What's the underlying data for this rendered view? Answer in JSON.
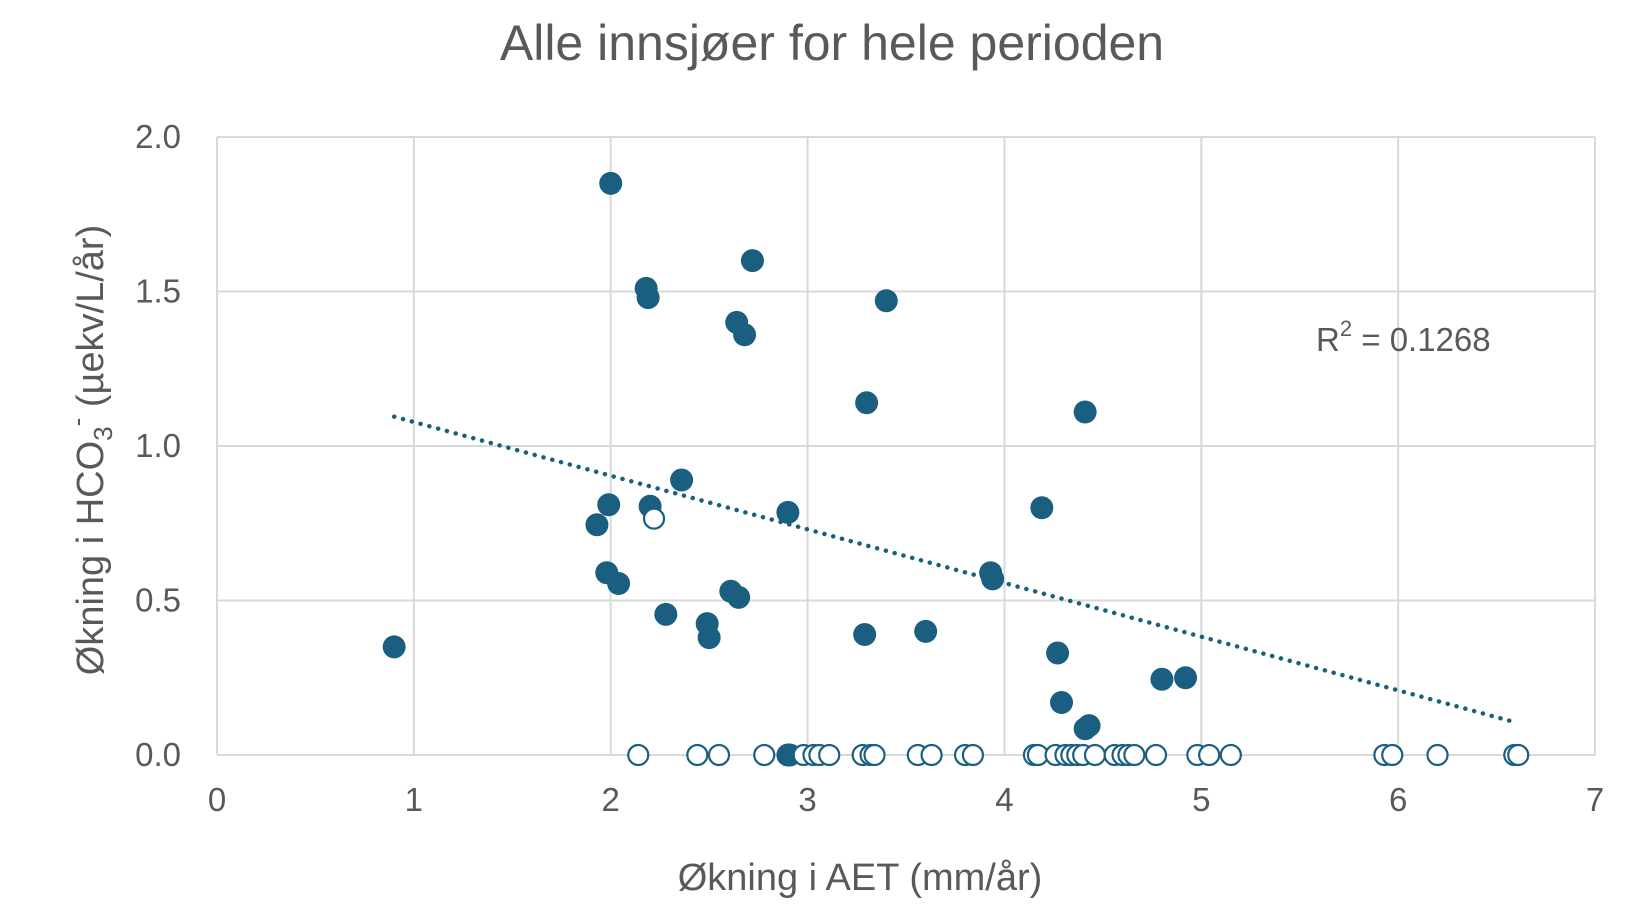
{
  "chart_data": {
    "type": "scatter",
    "title": "Alle innsjøer for hele perioden",
    "xlabel": "Økning i AET (mm/år)",
    "ylabel": {
      "prefix": "Økning i HCO",
      "subscript": "3",
      "superscript": "-",
      "suffix": " (µekv/L/år)"
    },
    "xlim": [
      0,
      7
    ],
    "ylim": [
      0,
      2
    ],
    "x_ticks": [
      0,
      1,
      2,
      3,
      4,
      5,
      6,
      7
    ],
    "y_ticks": [
      0.0,
      0.5,
      1.0,
      1.5,
      2.0
    ],
    "x_tick_labels": [
      "0",
      "1",
      "2",
      "3",
      "4",
      "5",
      "6",
      "7"
    ],
    "y_tick_labels": [
      "0.0",
      "0.5",
      "1.0",
      "1.5",
      "2.0"
    ],
    "grid": true,
    "colors": {
      "marker": "#1a5f80",
      "grid": "#d9d9d9",
      "text": "#595959"
    },
    "series": [
      {
        "style": "filled",
        "x": [
          2.0,
          2.18,
          2.19,
          2.72,
          2.64,
          2.68,
          3.4,
          3.3,
          4.41,
          0.9,
          1.93,
          1.99,
          1.98,
          2.04,
          2.2,
          2.36,
          2.28,
          2.49,
          2.5,
          2.61,
          2.65,
          2.9,
          3.29,
          3.6,
          3.93,
          3.94,
          4.19,
          4.27,
          4.29,
          4.41,
          4.43,
          4.8,
          4.92,
          2.9,
          2.91
        ],
        "y": [
          1.85,
          1.51,
          1.48,
          1.6,
          1.4,
          1.36,
          1.47,
          1.14,
          1.11,
          0.35,
          0.745,
          0.81,
          0.59,
          0.555,
          0.805,
          0.89,
          0.455,
          0.425,
          0.38,
          0.53,
          0.51,
          0.785,
          0.39,
          0.4,
          0.59,
          0.57,
          0.8,
          0.33,
          0.17,
          0.085,
          0.095,
          0.245,
          0.25,
          0.0,
          0.0
        ]
      },
      {
        "style": "open",
        "x": [
          2.22,
          2.14,
          2.44,
          2.55,
          2.78,
          2.98,
          3.03,
          3.06,
          3.11,
          3.28,
          3.32,
          3.34,
          3.56,
          3.63,
          3.8,
          3.84,
          4.15,
          4.17,
          4.26,
          4.31,
          4.34,
          4.37,
          4.4,
          4.46,
          4.56,
          4.6,
          4.63,
          4.66,
          4.77,
          4.98,
          5.04,
          5.15,
          5.93,
          5.97,
          6.2,
          6.59,
          6.61
        ],
        "y": [
          0.765,
          0,
          0,
          0,
          0,
          0,
          0,
          0,
          0,
          0,
          0,
          0,
          0,
          0,
          0,
          0,
          0,
          0,
          0,
          0,
          0,
          0,
          0,
          0,
          0,
          0,
          0,
          0,
          0,
          0,
          0,
          0,
          0,
          0,
          0,
          0,
          0
        ]
      }
    ],
    "trendline": {
      "style": "dotted",
      "x": [
        0.9,
        6.6
      ],
      "y": [
        1.095,
        0.105
      ],
      "label": "R² = 0.1268",
      "label_base": "R",
      "label_sup": "2",
      "label_value": " = 0.1268"
    }
  }
}
